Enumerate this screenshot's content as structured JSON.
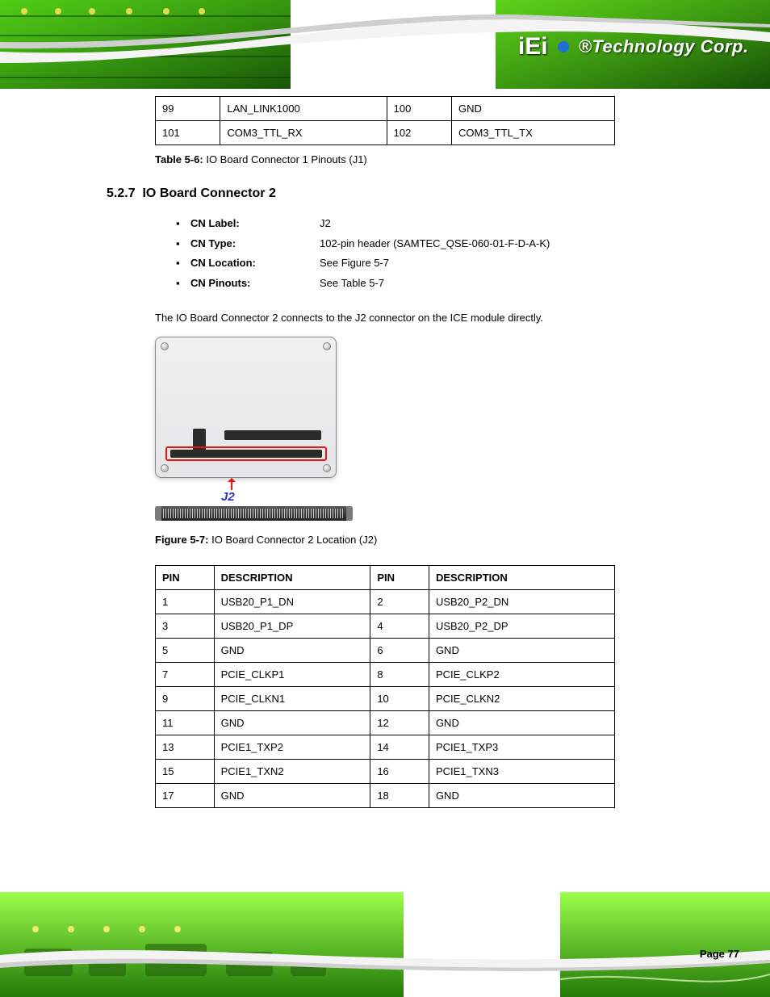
{
  "brand": {
    "logo_prefix": "iEi",
    "logo_text": "®Technology Corp.",
    "logo_text_color": "#ffffff"
  },
  "banner_colors": {
    "pcb_green_dark": "#1a5a0a",
    "pcb_green_mid": "#3aa514",
    "pcb_green_light": "#7bff1f",
    "trace_white": "#f6f6f6",
    "swoosh_gray": "#bfbfbf"
  },
  "page_number": "Page 77",
  "table1": {
    "rows": [
      [
        "99",
        "LAN_LINK1000",
        "100",
        "GND"
      ],
      [
        "101",
        "COM3_TTL_RX",
        "102",
        "COM3_TTL_TX"
      ]
    ]
  },
  "caption1": {
    "label": "Table 5-6:",
    "text": " IO Board Connector 1 Pinouts (J1)"
  },
  "section": {
    "num": "5.2.7",
    "title": "IO Board Connector 2"
  },
  "kv": [
    {
      "k": "CN Label:",
      "v": "J2"
    },
    {
      "k": "CN Type:",
      "v": "102-pin header (SAMTEC_QSE-060-01-F-D-A-K)"
    },
    {
      "k": "CN Location:",
      "v": "See Figure 5-7"
    },
    {
      "k": "CN Pinouts:",
      "v": "See Table 5-7"
    }
  ],
  "paragraph": "The IO Board Connector 2 connects to the J2 connector on the ICE module directly.",
  "figure": {
    "label_j2": "J2",
    "highlight_color": "#e11111",
    "j2_color": "#2a2fbd"
  },
  "caption2": {
    "label": "Figure 5-7:",
    "text": " IO Board Connector 2 Location (J2)"
  },
  "table2": {
    "header": [
      "PIN",
      "DESCRIPTION",
      "PIN",
      "DESCRIPTION"
    ],
    "rows": [
      [
        "1",
        "USB20_P1_DN",
        "2",
        "USB20_P2_DN"
      ],
      [
        "3",
        "USB20_P1_DP",
        "4",
        "USB20_P2_DP"
      ],
      [
        "5",
        "GND",
        "6",
        "GND"
      ],
      [
        "7",
        "PCIE_CLKP1",
        "8",
        "PCIE_CLKP2"
      ],
      [
        "9",
        "PCIE_CLKN1",
        "10",
        "PCIE_CLKN2"
      ],
      [
        "11",
        "GND",
        "12",
        "GND"
      ],
      [
        "13",
        "PCIE1_TXP2",
        "14",
        "PCIE1_TXP3"
      ],
      [
        "15",
        "PCIE1_TXN2",
        "16",
        "PCIE1_TXN3"
      ],
      [
        "17",
        "GND",
        "18",
        "GND"
      ]
    ]
  }
}
